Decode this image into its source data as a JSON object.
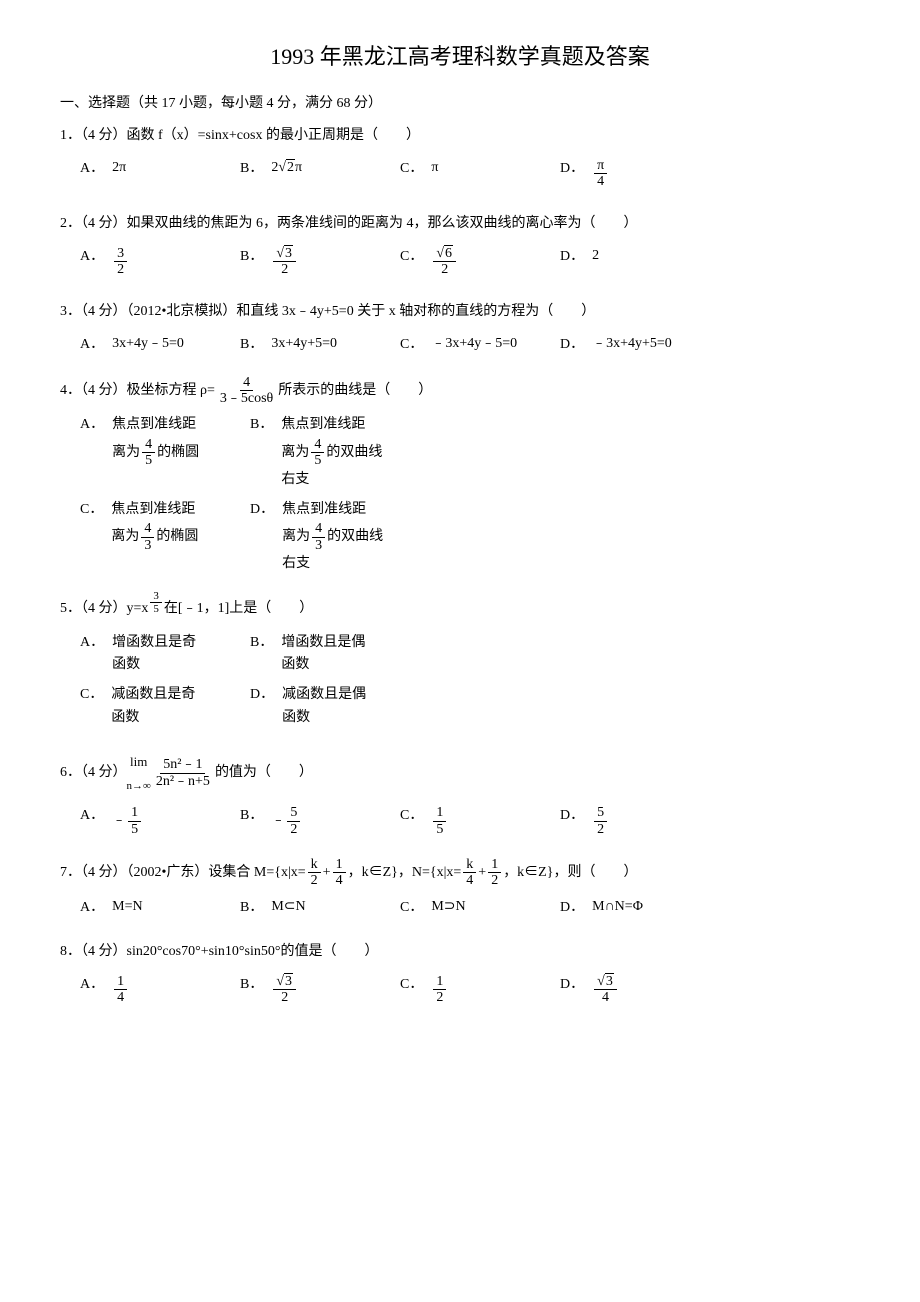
{
  "title": "1993 年黑龙江高考理科数学真题及答案",
  "section_header": "一、选择题（共 17 小题，每小题 4 分，满分 68 分）",
  "questions": [
    {
      "num": "1．",
      "points": "（4 分）",
      "text": "函数 f（x）=sinx+cosx 的最小正周期是（　　）",
      "choices": [
        {
          "label": "A．",
          "content_type": "text",
          "text": "2π"
        },
        {
          "label": "B．",
          "content_type": "sqrt_pi",
          "sqrt_val": "2",
          "coef": "2",
          "suffix": "π"
        },
        {
          "label": "C．",
          "content_type": "text",
          "text": "π"
        },
        {
          "label": "D．",
          "content_type": "frac",
          "num": "π",
          "den": "4"
        }
      ]
    },
    {
      "num": "2．",
      "points": "（4 分）",
      "text": "如果双曲线的焦距为 6，两条准线间的距离为 4，那么该双曲线的离心率为（　　）",
      "choices": [
        {
          "label": "A．",
          "content_type": "frac",
          "num": "3",
          "den": "2"
        },
        {
          "label": "B．",
          "content_type": "frac_sqrt",
          "sqrt_val": "3",
          "den": "2"
        },
        {
          "label": "C．",
          "content_type": "frac_sqrt",
          "sqrt_val": "6",
          "den": "2"
        },
        {
          "label": "D．",
          "content_type": "text",
          "text": "2"
        }
      ]
    },
    {
      "num": "3．",
      "points": "（4 分）",
      "text": "（2012•北京模拟）和直线 3x﹣4y+5=0 关于 x 轴对称的直线的方程为（　　）",
      "choices": [
        {
          "label": "A．",
          "content_type": "text",
          "text": "3x+4y﹣5=0"
        },
        {
          "label": "B．",
          "content_type": "text",
          "text": "3x+4y+5=0"
        },
        {
          "label": "C．",
          "content_type": "text",
          "text": "﹣3x+4y﹣5=0"
        },
        {
          "label": "D．",
          "content_type": "text",
          "text": "﹣3x+4y+5=0"
        }
      ]
    },
    {
      "num": "4．",
      "points": "（4 分）",
      "text_prefix": "极坐标方程 ρ=",
      "frac_num": "4",
      "frac_den": "3﹣5cosθ",
      "text_suffix": "所表示的曲线是（　　）",
      "choices_2col": true,
      "choices": [
        {
          "label": "A．",
          "lines": [
            "焦点到准线距",
            "离为",
            "的椭圆"
          ],
          "frac_num": "4",
          "frac_den": "5"
        },
        {
          "label": "B．",
          "lines": [
            "焦点到准线距",
            "离为",
            "的双曲线",
            "右支"
          ],
          "frac_num": "4",
          "frac_den": "5"
        },
        {
          "label": "C．",
          "lines": [
            "焦点到准线距",
            "离为",
            "的椭圆"
          ],
          "frac_num": "4",
          "frac_den": "3"
        },
        {
          "label": "D．",
          "lines": [
            "焦点到准线距",
            "离为",
            "的双曲线",
            "右支"
          ],
          "frac_num": "4",
          "frac_den": "3"
        }
      ]
    },
    {
      "num": "5．",
      "points": "（4 分）",
      "text_prefix": "y=x",
      "exp_num": "3",
      "exp_den": "5",
      "text_suffix": "在[﹣1，1]上是（　　）",
      "choices_2col": true,
      "choices": [
        {
          "label": "A．",
          "lines": [
            "增函数且是奇",
            "函数"
          ]
        },
        {
          "label": "B．",
          "lines": [
            "增函数且是偶",
            "函数"
          ]
        },
        {
          "label": "C．",
          "lines": [
            "减函数且是奇",
            "函数"
          ]
        },
        {
          "label": "D．",
          "lines": [
            "减函数且是偶",
            "函数"
          ]
        }
      ]
    },
    {
      "num": "6．",
      "points": "（4 分）",
      "text_prefix": "",
      "limit_prefix": "lim",
      "limit_sub": "n→∞",
      "frac_num": "5n²﹣1",
      "frac_den": "2n²﹣n+5",
      "text_suffix": "的值为（　　）",
      "choices": [
        {
          "label": "A．",
          "content_type": "neg_frac",
          "num": "1",
          "den": "5"
        },
        {
          "label": "B．",
          "content_type": "neg_frac",
          "num": "5",
          "den": "2"
        },
        {
          "label": "C．",
          "content_type": "frac",
          "num": "1",
          "den": "5"
        },
        {
          "label": "D．",
          "content_type": "frac",
          "num": "5",
          "den": "2"
        }
      ]
    },
    {
      "num": "7．",
      "points": "（4 分）",
      "text_prefix": "（2002•广东）设集合 M={x|x=",
      "m_frac1_num": "k",
      "m_frac1_den": "2",
      "m_plus": "+",
      "m_frac2_num": "1",
      "m_frac2_den": "4",
      "text_mid": "，k∈Z}，N={x|x=",
      "n_frac1_num": "k",
      "n_frac1_den": "4",
      "n_frac2_num": "1",
      "n_frac2_den": "2",
      "text_suffix": "，k∈Z}，则（　　）",
      "choices": [
        {
          "label": "A．",
          "content_type": "text",
          "text": "M=N"
        },
        {
          "label": "B．",
          "content_type": "text",
          "text": "M⊂N"
        },
        {
          "label": "C．",
          "content_type": "text",
          "text": "M⊃N"
        },
        {
          "label": "D．",
          "content_type": "text",
          "text": "M∩N=Φ"
        }
      ]
    },
    {
      "num": "8．",
      "points": "（4 分）",
      "text": "sin20°cos70°+sin10°sin50°的值是（　　）",
      "choices": [
        {
          "label": "A．",
          "content_type": "frac",
          "num": "1",
          "den": "4"
        },
        {
          "label": "B．",
          "content_type": "frac_sqrt",
          "sqrt_val": "3",
          "den": "2"
        },
        {
          "label": "C．",
          "content_type": "frac",
          "num": "1",
          "den": "2"
        },
        {
          "label": "D．",
          "content_type": "frac_sqrt",
          "sqrt_val": "3",
          "den": "4"
        }
      ]
    }
  ]
}
